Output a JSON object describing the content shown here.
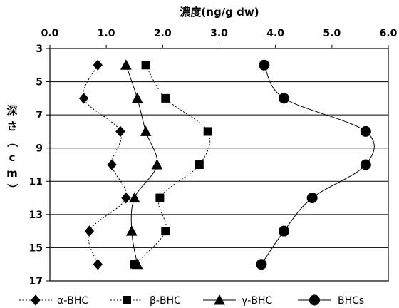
{
  "chart_data": {
    "type": "line",
    "title": "",
    "xlabel": "濃度(ng/g dw)",
    "ylabel": "深さ（cm）",
    "xlim": [
      0,
      6
    ],
    "ylim": [
      3,
      17
    ],
    "y_inverted": true,
    "x_axis_position": "top",
    "grid": "horizontal",
    "legend_position": "bottom",
    "x_ticks": [
      "0.0",
      "1.0",
      "2.0",
      "3.0",
      "4.0",
      "5.0",
      "6.0"
    ],
    "y_ticks": [
      "3",
      "5",
      "7",
      "9",
      "11",
      "13",
      "15",
      "17"
    ],
    "depth": [
      4,
      6,
      8,
      10,
      12,
      14,
      16
    ],
    "series": [
      {
        "name": "α-BHC",
        "marker": "diamond",
        "line": "dotted",
        "values": [
          0.85,
          0.6,
          1.25,
          1.1,
          1.35,
          0.7,
          0.85
        ]
      },
      {
        "name": "β-BHC",
        "marker": "square",
        "line": "dotted",
        "values": [
          1.7,
          2.05,
          2.8,
          2.65,
          1.95,
          2.05,
          1.5
        ]
      },
      {
        "name": "γ-BHC",
        "marker": "triangle",
        "line": "solid",
        "values": [
          1.35,
          1.55,
          1.7,
          1.9,
          1.5,
          1.45,
          1.55
        ]
      },
      {
        "name": "BHCs",
        "marker": "circle",
        "line": "solid",
        "values": [
          3.8,
          4.15,
          5.6,
          5.6,
          4.65,
          4.15,
          3.75
        ]
      }
    ]
  }
}
